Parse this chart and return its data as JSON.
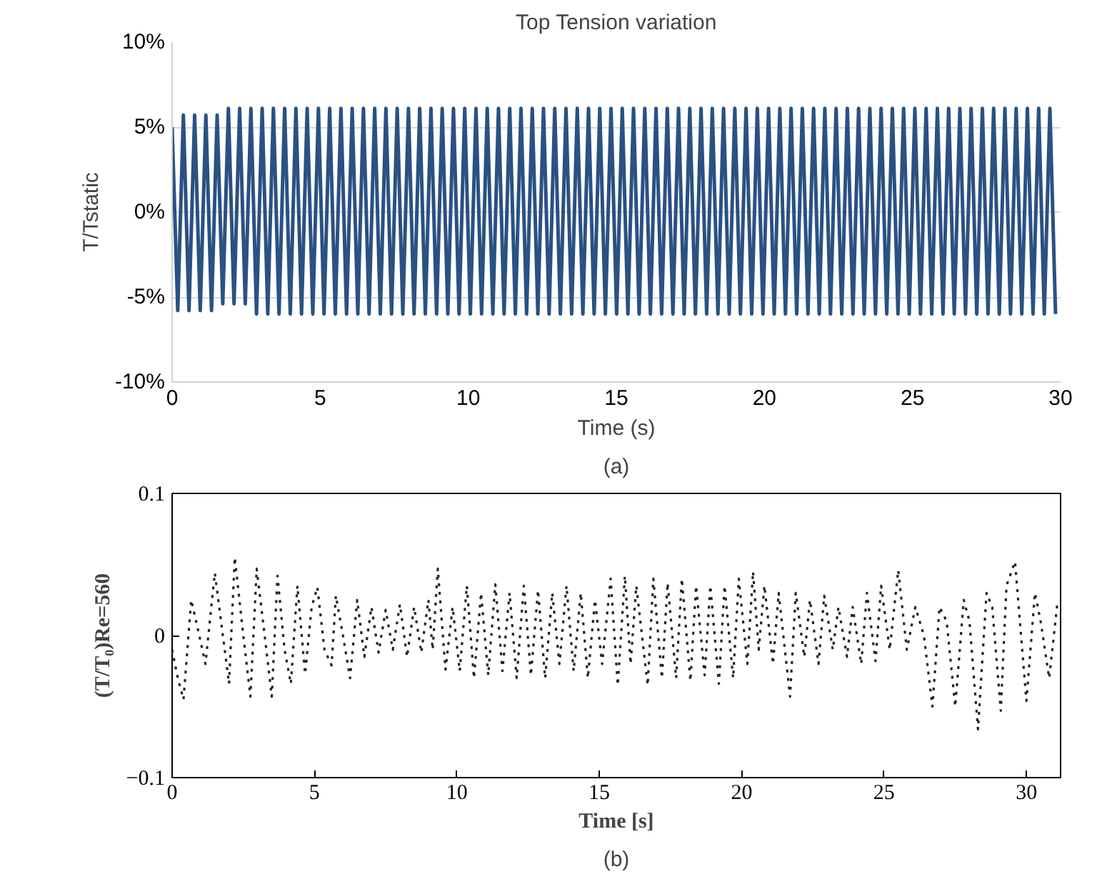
{
  "chart_data": [
    {
      "type": "line",
      "title": "Top Tension variation",
      "xlabel": "Time (s)",
      "ylabel": "T/Tstatic",
      "annotations": [
        "(a)"
      ],
      "xlim": [
        0,
        30
      ],
      "xticks": [
        0,
        5,
        10,
        15,
        20,
        25,
        30
      ],
      "ylim": [
        -10,
        10
      ],
      "yticks": [
        {
          "value": -10,
          "label": "-10%"
        },
        {
          "value": -5,
          "label": "-5%"
        },
        {
          "value": 0,
          "label": "0%"
        },
        {
          "value": 5,
          "label": "5%"
        },
        {
          "value": 10,
          "label": "10%"
        }
      ],
      "grid": "y",
      "line_style": "solid",
      "series": [
        {
          "color": "#2a5183",
          "x": [
            0,
            0.19,
            0.38,
            0.57,
            0.76,
            0.95,
            1.14,
            1.33,
            1.52,
            1.71,
            1.9,
            2.09,
            2.28,
            2.47,
            2.66,
            2.85,
            3.04,
            3.23,
            3.42,
            3.61,
            3.8,
            3.99,
            4.18,
            4.37,
            4.56,
            4.75,
            4.94,
            5.13,
            5.32,
            5.51,
            5.7,
            5.89,
            6.08,
            6.27,
            6.46,
            6.65,
            6.84,
            7.03,
            7.22,
            7.41,
            7.6,
            7.79,
            7.98,
            8.17,
            8.36,
            8.55,
            8.74,
            8.93,
            9.12,
            9.31,
            9.5,
            9.69,
            9.88,
            10.07,
            10.26,
            10.45,
            10.64,
            10.83,
            11.02,
            11.21,
            11.4,
            11.59,
            11.78,
            11.97,
            12.16,
            12.35,
            12.54,
            12.73,
            12.92,
            13.11,
            13.3,
            13.49,
            13.68,
            13.87,
            14.06,
            14.25,
            14.44,
            14.63,
            14.82,
            15.01,
            15.2,
            15.39,
            15.58,
            15.77,
            15.96,
            16.15,
            16.34,
            16.53,
            16.72,
            16.91,
            17.1,
            17.29,
            17.48,
            17.67,
            17.86,
            18.05,
            18.24,
            18.43,
            18.62,
            18.81,
            19.0,
            19.19,
            19.38,
            19.57,
            19.76,
            19.95,
            20.14,
            20.33,
            20.52,
            20.71,
            20.9,
            21.09,
            21.28,
            21.47,
            21.66,
            21.85,
            22.04,
            22.23,
            22.42,
            22.61,
            22.8,
            22.99,
            23.18,
            23.37,
            23.56,
            23.75,
            23.94,
            24.13,
            24.32,
            24.51,
            24.7,
            24.89,
            25.08,
            25.27,
            25.46,
            25.65,
            25.84,
            26.03,
            26.22,
            26.41,
            26.6,
            26.79,
            26.98,
            27.17,
            27.36,
            27.55,
            27.74,
            27.93,
            28.12,
            28.31,
            28.5,
            28.69,
            28.88,
            29.07,
            29.26,
            29.45,
            29.64,
            29.83
          ],
          "values": [
            5,
            -5.8,
            5.7,
            -5.8,
            5.7,
            -5.8,
            5.7,
            -5.8,
            5.7,
            -5.4,
            6.1,
            -5.4,
            6.1,
            -5.4,
            6.1,
            -6,
            6.1,
            -6,
            6.1,
            -6,
            6.1,
            -6,
            6.1,
            -6,
            6.1,
            -6,
            6.1,
            -6,
            6.1,
            -6,
            6.1,
            -6,
            6.1,
            -6,
            6.1,
            -6,
            6.1,
            -6,
            6.1,
            -6,
            6.1,
            -6,
            6.1,
            -6,
            6.1,
            -6,
            6.1,
            -6,
            6.1,
            -6,
            6.1,
            -6,
            6.1,
            -6,
            6.1,
            -6,
            6.1,
            -6,
            6.1,
            -6,
            6.1,
            -6,
            6.1,
            -6,
            6.1,
            -6,
            6.1,
            -6,
            6.1,
            -6,
            6.1,
            -6,
            6.1,
            -6,
            6.1,
            -6,
            6.1,
            -6,
            6.1,
            -6,
            6.1,
            -6,
            6.1,
            -6,
            6.1,
            -6,
            6.1,
            -6,
            6.1,
            -6,
            6.1,
            -6,
            6.1,
            -6,
            6.1,
            -6,
            6.1,
            -6,
            6.1,
            -6,
            6.1,
            -6,
            6.1,
            -6,
            6.1,
            -6,
            6.1,
            -6,
            6.1,
            -6,
            6.1,
            -6,
            6.1,
            -6,
            6.1,
            -6,
            6.1,
            -6,
            6.1,
            -6,
            6.1,
            -6,
            6.1,
            -6,
            6.1,
            -6,
            6.1,
            -6,
            6.1,
            -6,
            6.1,
            -6,
            6.1,
            -6,
            6.1,
            -6,
            6.1,
            -6,
            6.1,
            -6,
            6.1,
            -6,
            6.1,
            -6,
            6.1,
            -6,
            6.1,
            -6,
            6.1,
            -6,
            6.1,
            -6,
            6.1,
            -6,
            6.1,
            -6,
            6.1,
            -6
          ]
        }
      ]
    },
    {
      "type": "line",
      "xlabel": "Time [s]",
      "ylabel": "(T/T₀)Re=560",
      "annotations": [
        "(b)"
      ],
      "xlim": [
        0,
        31.2
      ],
      "xticks": [
        0,
        5,
        10,
        15,
        20,
        25,
        30
      ],
      "ylim": [
        -0.1,
        0.1
      ],
      "yticks": [
        -0.1,
        0,
        0.1
      ],
      "line_style": "dotted",
      "series": [
        {
          "color": "#222222",
          "x": [
            0,
            0.2,
            0.4,
            0.67,
            0.9,
            1.17,
            1.5,
            2.0,
            2.2,
            2.5,
            2.75,
            2.97,
            3.25,
            3.5,
            3.7,
            3.95,
            4.17,
            4.4,
            4.67,
            4.9,
            5.1,
            5.35,
            5.6,
            5.75,
            6.0,
            6.25,
            6.5,
            6.75,
            7.0,
            7.25,
            7.5,
            7.75,
            8.0,
            8.25,
            8.5,
            8.75,
            9.0,
            9.15,
            9.33,
            9.6,
            9.85,
            10.1,
            10.35,
            10.6,
            10.85,
            11.1,
            11.35,
            11.6,
            11.85,
            12.1,
            12.35,
            12.6,
            12.85,
            13.1,
            13.35,
            13.6,
            13.85,
            14.1,
            14.35,
            14.6,
            14.85,
            15.1,
            15.4,
            15.65,
            15.9,
            16.1,
            16.3,
            16.7,
            16.9,
            17.2,
            17.4,
            17.7,
            17.9,
            18.2,
            18.4,
            18.7,
            18.9,
            19.2,
            19.4,
            19.7,
            19.9,
            20.2,
            20.4,
            20.6,
            20.8,
            21.1,
            21.3,
            21.7,
            21.9,
            22.2,
            22.4,
            22.7,
            22.9,
            23.2,
            23.4,
            23.7,
            23.9,
            24.2,
            24.4,
            24.7,
            24.9,
            25.2,
            25.5,
            25.8,
            26.1,
            26.4,
            26.7,
            26.95,
            27.2,
            27.5,
            27.8,
            28.0,
            28.3,
            28.6,
            28.8,
            29.1,
            29.3,
            29.6,
            30.0,
            30.3,
            30.5,
            30.8,
            31.1
          ],
          "values": [
            -0.01,
            -0.03,
            -0.045,
            0.025,
            0.005,
            -0.02,
            0.044,
            -0.034,
            0.055,
            0.0,
            -0.043,
            0.047,
            0.0,
            -0.043,
            0.042,
            -0.01,
            -0.034,
            0.035,
            -0.027,
            0.02,
            0.034,
            -0.01,
            -0.021,
            0.028,
            0.0,
            -0.03,
            0.025,
            -0.015,
            0.02,
            -0.012,
            0.018,
            -0.01,
            0.022,
            -0.015,
            0.02,
            -0.012,
            0.025,
            -0.01,
            0.047,
            -0.024,
            0.02,
            -0.025,
            0.035,
            -0.03,
            0.03,
            -0.028,
            0.036,
            -0.025,
            0.03,
            -0.03,
            0.035,
            -0.028,
            0.032,
            -0.03,
            0.03,
            -0.02,
            0.035,
            -0.025,
            0.03,
            -0.03,
            0.025,
            -0.02,
            0.04,
            -0.035,
            0.042,
            -0.02,
            0.035,
            -0.035,
            0.04,
            -0.03,
            0.037,
            -0.03,
            0.04,
            -0.032,
            0.035,
            -0.028,
            0.035,
            -0.034,
            0.035,
            -0.03,
            0.04,
            -0.02,
            0.045,
            -0.01,
            0.035,
            -0.02,
            0.03,
            -0.043,
            0.03,
            -0.015,
            0.025,
            -0.02,
            0.028,
            -0.01,
            0.02,
            -0.015,
            0.02,
            -0.02,
            0.03,
            -0.018,
            0.035,
            -0.01,
            0.046,
            -0.01,
            0.02,
            0.0,
            -0.05,
            0.02,
            0.01,
            -0.05,
            0.025,
            0.01,
            -0.066,
            0.03,
            0.02,
            -0.053,
            0.035,
            0.052,
            -0.046,
            0.03,
            0.01,
            -0.03,
            0.025
          ]
        }
      ]
    }
  ]
}
